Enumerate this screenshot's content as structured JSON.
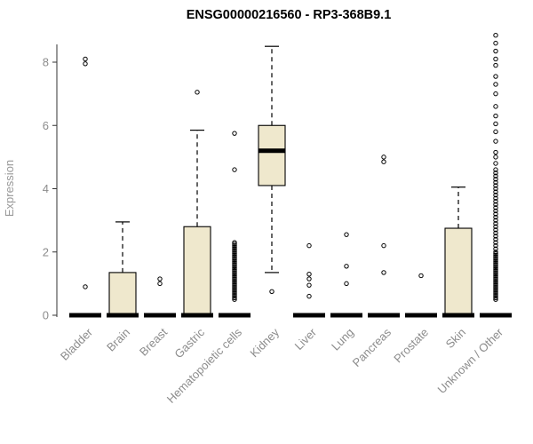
{
  "title": "ENSG00000216560 - RP3-368B9.1",
  "chart_data": {
    "type": "boxplot",
    "title": "ENSG00000216560 - RP3-368B9.1",
    "ylabel": "Expression",
    "xlabel": "",
    "ylim": [
      0,
      9
    ],
    "yticks": [
      0,
      2,
      4,
      6,
      8
    ],
    "grid": false,
    "legend": false,
    "categories": [
      "Bladder",
      "Brain",
      "Breast",
      "Gastric",
      "Hematopoietic cells",
      "Kidney",
      "Liver",
      "Lung",
      "Pancreas",
      "Prostate",
      "Skin",
      "Unknown / Other"
    ],
    "series": [
      {
        "name": "Bladder",
        "q1": 0,
        "median": 0,
        "q3": 0,
        "whisker_low": 0,
        "whisker_high": 0,
        "outliers": [
          0.9,
          7.95,
          8.1
        ]
      },
      {
        "name": "Brain",
        "q1": 0,
        "median": 0,
        "q3": 1.35,
        "whisker_low": 0,
        "whisker_high": 2.95,
        "outliers": []
      },
      {
        "name": "Breast",
        "q1": 0,
        "median": 0,
        "q3": 0,
        "whisker_low": 0,
        "whisker_high": 0,
        "outliers": [
          1.0,
          1.15
        ]
      },
      {
        "name": "Gastric",
        "q1": 0,
        "median": 0,
        "q3": 2.8,
        "whisker_low": 0,
        "whisker_high": 5.85,
        "outliers": [
          7.05
        ]
      },
      {
        "name": "Hematopoietic cells",
        "q1": 0,
        "median": 0,
        "q3": 0,
        "whisker_low": 0,
        "whisker_high": 0,
        "outliers": [
          0.5,
          0.55,
          0.6,
          0.65,
          0.7,
          0.75,
          0.8,
          0.85,
          0.9,
          0.95,
          1.0,
          1.05,
          1.1,
          1.15,
          1.2,
          1.25,
          1.3,
          1.35,
          1.4,
          1.45,
          1.5,
          1.55,
          1.6,
          1.65,
          1.7,
          1.75,
          1.8,
          1.85,
          1.9,
          1.95,
          2.0,
          2.05,
          2.1,
          2.15,
          2.2,
          2.25,
          2.3,
          4.6,
          5.75
        ]
      },
      {
        "name": "Kidney",
        "q1": 4.1,
        "median": 5.2,
        "q3": 6.0,
        "whisker_low": 1.35,
        "whisker_high": 8.5,
        "outliers": [
          0.75
        ]
      },
      {
        "name": "Liver",
        "q1": 0,
        "median": 0,
        "q3": 0,
        "whisker_low": 0,
        "whisker_high": 0,
        "outliers": [
          0.6,
          0.95,
          1.15,
          1.3,
          2.2
        ]
      },
      {
        "name": "Lung",
        "q1": 0,
        "median": 0,
        "q3": 0,
        "whisker_low": 0,
        "whisker_high": 0,
        "outliers": [
          1.0,
          1.55,
          2.55
        ]
      },
      {
        "name": "Pancreas",
        "q1": 0,
        "median": 0,
        "q3": 0,
        "whisker_low": 0,
        "whisker_high": 0,
        "outliers": [
          1.35,
          2.2,
          4.85,
          5.0
        ]
      },
      {
        "name": "Prostate",
        "q1": 0,
        "median": 0,
        "q3": 0,
        "whisker_low": 0,
        "whisker_high": 0,
        "outliers": [
          1.25
        ]
      },
      {
        "name": "Skin",
        "q1": 0,
        "median": 0,
        "q3": 2.75,
        "whisker_low": 0,
        "whisker_high": 4.05,
        "outliers": []
      },
      {
        "name": "Unknown / Other",
        "q1": 0,
        "median": 0,
        "q3": 0,
        "whisker_low": 0,
        "whisker_high": 0,
        "outliers": [
          0.5,
          0.55,
          0.6,
          0.65,
          0.7,
          0.75,
          0.8,
          0.85,
          0.9,
          0.95,
          1.0,
          1.05,
          1.1,
          1.15,
          1.2,
          1.25,
          1.3,
          1.35,
          1.4,
          1.45,
          1.5,
          1.55,
          1.6,
          1.65,
          1.7,
          1.75,
          1.8,
          1.85,
          1.9,
          1.95,
          2.0,
          2.1,
          2.2,
          2.3,
          2.4,
          2.5,
          2.6,
          2.7,
          2.8,
          2.9,
          3.0,
          3.1,
          3.2,
          3.3,
          3.4,
          3.5,
          3.6,
          3.7,
          3.8,
          3.9,
          4.0,
          4.1,
          4.2,
          4.3,
          4.4,
          4.5,
          4.6,
          4.8,
          5.0,
          5.15,
          5.5,
          5.8,
          6.05,
          6.3,
          6.6,
          7.0,
          7.3,
          7.55,
          7.9,
          8.1,
          8.35,
          8.6,
          8.85
        ]
      }
    ],
    "colors": {
      "box_fill": "#EFE8CD",
      "box_stroke": "#000000",
      "median": "#000000",
      "whisker": "#000000",
      "outlier": "#000000",
      "axis_line": "#333333",
      "axis_text": "#8C8C8C",
      "title_color": "#000000",
      "background": "#FFFFFF"
    }
  }
}
